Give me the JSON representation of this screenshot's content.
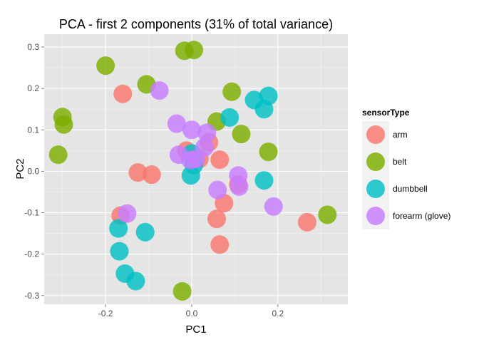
{
  "chart_data": {
    "type": "scatter",
    "title": "PCA - first 2 components (31% of total variance)",
    "xlabel": "PC1",
    "ylabel": "PC2",
    "xlim": [
      -0.3425,
      0.3625
    ],
    "ylim": [
      -0.321,
      0.331
    ],
    "x_ticks": [
      -0.2,
      0.0,
      0.2
    ],
    "x_tick_labels": [
      "-0.2",
      "0.0",
      "0.2"
    ],
    "y_ticks": [
      -0.3,
      -0.2,
      -0.1,
      0.0,
      0.1,
      0.2,
      0.3
    ],
    "y_tick_labels": [
      "-0.3",
      "-0.2",
      "-0.1",
      "0.0",
      "0.1",
      "0.2",
      "0.3"
    ],
    "grid": true,
    "legend": {
      "title": "sensorType",
      "position": "right"
    },
    "series": [
      {
        "name": "arm",
        "color": "#f8766d",
        "points": [
          [
            -0.16,
            0.187
          ],
          [
            -0.125,
            -0.003
          ],
          [
            -0.093,
            -0.008
          ],
          [
            -0.165,
            -0.107
          ],
          [
            0.04,
            0.07
          ],
          [
            0.018,
            0.03
          ],
          [
            0.065,
            0.028
          ],
          [
            0.108,
            -0.032
          ],
          [
            0.075,
            -0.077
          ],
          [
            0.058,
            -0.115
          ],
          [
            0.065,
            -0.177
          ],
          [
            0.268,
            -0.123
          ],
          [
            -0.012,
            0.05
          ]
        ]
      },
      {
        "name": "belt",
        "color": "#7cae00",
        "points": [
          [
            -0.2,
            0.255
          ],
          [
            -0.017,
            0.291
          ],
          [
            0.005,
            0.293
          ],
          [
            -0.105,
            0.21
          ],
          [
            -0.3,
            0.131
          ],
          [
            -0.297,
            0.113
          ],
          [
            -0.31,
            0.04
          ],
          [
            0.093,
            0.192
          ],
          [
            0.058,
            0.12
          ],
          [
            0.115,
            0.09
          ],
          [
            0.178,
            0.047
          ],
          [
            0.315,
            -0.105
          ],
          [
            -0.022,
            -0.29
          ]
        ]
      },
      {
        "name": "dumbbell",
        "color": "#00bfc4",
        "points": [
          [
            0.145,
            0.172
          ],
          [
            0.178,
            0.182
          ],
          [
            0.168,
            0.15
          ],
          [
            0.088,
            0.13
          ],
          [
            0.0,
            0.043
          ],
          [
            0.005,
            0.015
          ],
          [
            -0.002,
            -0.01
          ],
          [
            0.168,
            -0.022
          ],
          [
            -0.17,
            -0.138
          ],
          [
            -0.108,
            -0.147
          ],
          [
            -0.168,
            -0.193
          ],
          [
            -0.155,
            -0.247
          ],
          [
            -0.13,
            -0.265
          ]
        ]
      },
      {
        "name": "forearm (glove)",
        "color": "#c77cff",
        "points": [
          [
            -0.075,
            0.195
          ],
          [
            -0.035,
            0.115
          ],
          [
            0.0,
            0.1
          ],
          [
            0.035,
            0.093
          ],
          [
            0.03,
            0.058
          ],
          [
            -0.03,
            0.04
          ],
          [
            0.01,
            0.03
          ],
          [
            -0.003,
            0.027
          ],
          [
            0.108,
            -0.01
          ],
          [
            0.11,
            -0.037
          ],
          [
            0.06,
            -0.045
          ],
          [
            0.19,
            -0.085
          ],
          [
            -0.15,
            -0.102
          ]
        ]
      }
    ]
  }
}
